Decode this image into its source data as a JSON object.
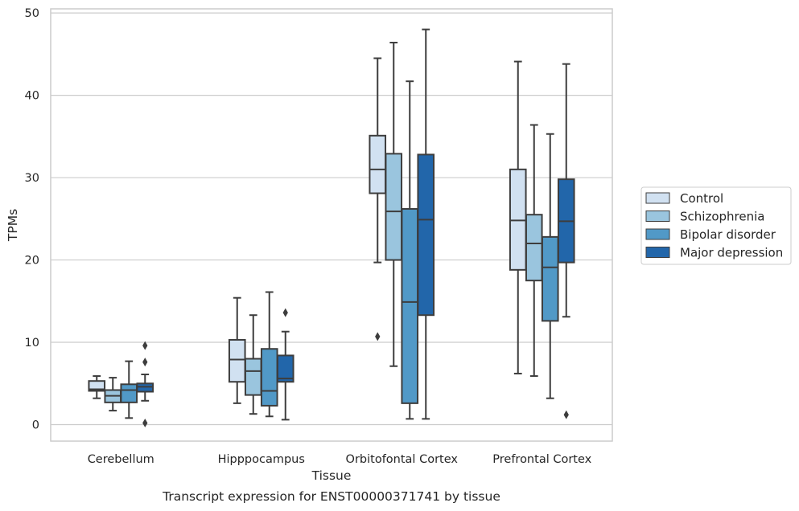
{
  "chart_data": {
    "type": "box",
    "title": "",
    "caption": "Transcript expression for ENST00000371741 by tissue",
    "xlabel": "Tissue",
    "ylabel": "TPMs",
    "ylim": [
      -2,
      50.5
    ],
    "yticks": [
      0,
      10,
      20,
      30,
      40,
      50
    ],
    "grid": "horizontal",
    "legend_position": "right",
    "categories": [
      "Cerebellum",
      "Hipppocampus",
      "Orbitofontal Cortex",
      "Prefrontal Cortex"
    ],
    "series": [
      {
        "name": "Control",
        "color": "#d1e1f1",
        "boxes": [
          {
            "whislo": 3.2,
            "q1": 4.1,
            "med": 4.3,
            "q3": 5.3,
            "whishi": 5.9,
            "fliers": []
          },
          {
            "whislo": 2.6,
            "q1": 5.2,
            "med": 7.9,
            "q3": 10.3,
            "whishi": 15.4,
            "fliers": []
          },
          {
            "whislo": 19.7,
            "q1": 28.1,
            "med": 31.0,
            "q3": 35.1,
            "whishi": 44.5,
            "fliers": [
              10.7
            ]
          },
          {
            "whislo": 6.2,
            "q1": 18.8,
            "med": 24.8,
            "q3": 31.0,
            "whishi": 44.1,
            "fliers": []
          }
        ]
      },
      {
        "name": "Schizophrenia",
        "color": "#9ac5de",
        "boxes": [
          {
            "whislo": 1.7,
            "q1": 2.7,
            "med": 3.5,
            "q3": 4.2,
            "whishi": 5.7,
            "fliers": []
          },
          {
            "whislo": 1.3,
            "q1": 3.6,
            "med": 6.5,
            "q3": 8.0,
            "whishi": 13.3,
            "fliers": []
          },
          {
            "whislo": 7.1,
            "q1": 20.0,
            "med": 25.9,
            "q3": 32.9,
            "whishi": 46.4,
            "fliers": []
          },
          {
            "whislo": 5.9,
            "q1": 17.5,
            "med": 22.0,
            "q3": 25.5,
            "whishi": 36.4,
            "fliers": []
          }
        ]
      },
      {
        "name": "Bipolar disorder",
        "color": "#5199c7",
        "boxes": [
          {
            "whislo": 0.8,
            "q1": 2.7,
            "med": 4.2,
            "q3": 4.9,
            "whishi": 7.7,
            "fliers": []
          },
          {
            "whislo": 1.0,
            "q1": 2.3,
            "med": 4.1,
            "q3": 9.2,
            "whishi": 16.1,
            "fliers": []
          },
          {
            "whislo": 0.7,
            "q1": 2.6,
            "med": 14.9,
            "q3": 26.2,
            "whishi": 41.7,
            "fliers": []
          },
          {
            "whislo": 3.2,
            "q1": 12.6,
            "med": 19.1,
            "q3": 22.8,
            "whishi": 35.3,
            "fliers": []
          }
        ]
      },
      {
        "name": "Major depression",
        "color": "#2266aa",
        "boxes": [
          {
            "whislo": 2.9,
            "q1": 4.0,
            "med": 4.6,
            "q3": 5.0,
            "whishi": 6.1,
            "fliers": [
              9.6,
              7.6,
              0.2
            ]
          },
          {
            "whislo": 0.6,
            "q1": 5.2,
            "med": 5.6,
            "q3": 8.4,
            "whishi": 11.3,
            "fliers": [
              13.6
            ]
          },
          {
            "whislo": 0.7,
            "q1": 13.3,
            "med": 24.9,
            "q3": 32.8,
            "whishi": 48.0,
            "fliers": []
          },
          {
            "whislo": 13.1,
            "q1": 19.7,
            "med": 24.7,
            "q3": 29.8,
            "whishi": 43.8,
            "fliers": [
              1.2
            ]
          }
        ]
      }
    ]
  }
}
